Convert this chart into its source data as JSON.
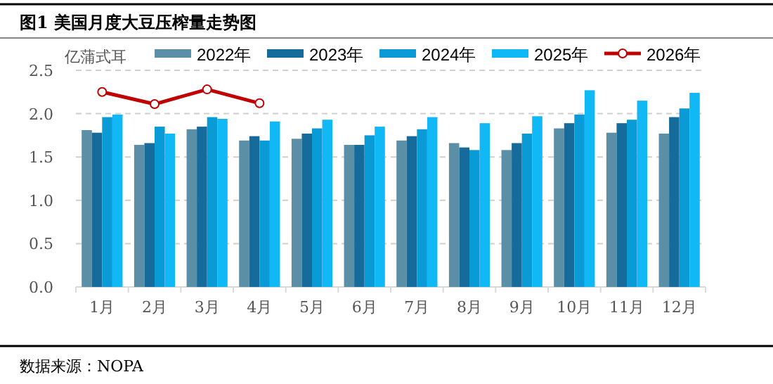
{
  "chart_data": {
    "type": "bar",
    "title": "图1  美国月度大豆压榨量走势图",
    "ylabel": "亿蒲式耳",
    "categories": [
      "1月",
      "2月",
      "3月",
      "4月",
      "5月",
      "6月",
      "7月",
      "8月",
      "9月",
      "10月",
      "11月",
      "12月"
    ],
    "series": [
      {
        "name": "2022年",
        "color": "#5b8fa8",
        "values": [
          1.81,
          1.64,
          1.82,
          1.69,
          1.71,
          1.64,
          1.69,
          1.66,
          1.58,
          1.83,
          1.78,
          1.77
        ]
      },
      {
        "name": "2023年",
        "color": "#156b99",
        "values": [
          1.78,
          1.66,
          1.85,
          1.74,
          1.77,
          1.64,
          1.74,
          1.61,
          1.66,
          1.89,
          1.89,
          1.96
        ]
      },
      {
        "name": "2024年",
        "color": "#0a9ad6",
        "values": [
          1.96,
          1.85,
          1.96,
          1.69,
          1.83,
          1.75,
          1.82,
          1.58,
          1.77,
          1.99,
          1.93,
          2.06
        ]
      },
      {
        "name": "2025年",
        "color": "#10b8f5",
        "values": [
          1.99,
          1.77,
          1.94,
          1.91,
          1.93,
          1.85,
          1.96,
          1.89,
          1.97,
          2.27,
          2.15,
          2.24
        ]
      },
      {
        "name": "2026年",
        "color": "#c00000",
        "type": "line",
        "marker": "circle",
        "values": [
          2.25,
          2.11,
          2.28,
          2.12,
          null,
          null,
          null,
          null,
          null,
          null,
          null,
          null
        ]
      }
    ],
    "ylim": [
      0,
      2.5
    ],
    "yticks": [
      {
        "value": 0,
        "label": "0.0"
      },
      {
        "value": 0.5,
        "label": "0.5"
      },
      {
        "value": 1,
        "label": "1.0"
      },
      {
        "value": 1.5,
        "label": "1.5"
      },
      {
        "value": 2,
        "label": "2.0"
      },
      {
        "value": 2.5,
        "label": "2.5"
      }
    ],
    "grid": "y",
    "legend": "top",
    "annotations": [
      "数据来源：NOPA"
    ]
  }
}
